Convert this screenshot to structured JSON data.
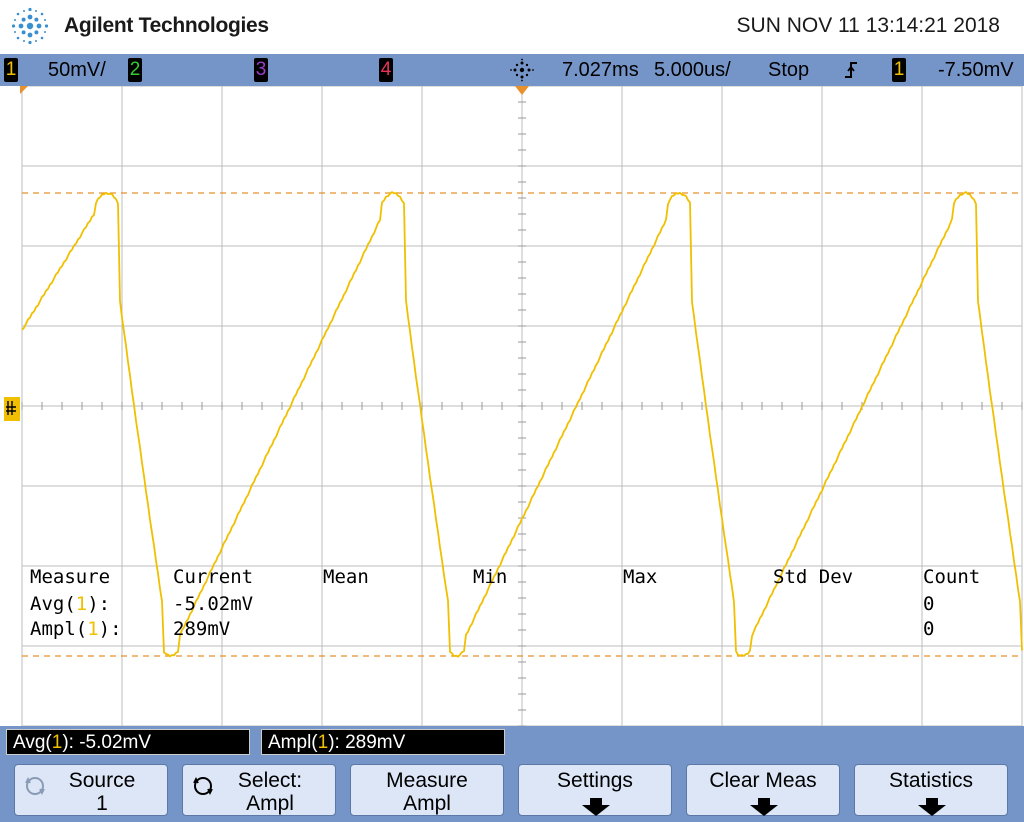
{
  "header": {
    "brand": "Agilent Technologies",
    "datetime": "SUN NOV 11 13:14:21 2018",
    "logo_icon": "agilent-spark-logo"
  },
  "status_bar": {
    "ch1": {
      "number": "1",
      "color": "#f0c000",
      "scale": "50mV/"
    },
    "ch2": {
      "number": "2",
      "color": "#33cc33"
    },
    "ch3": {
      "number": "3",
      "color": "#9a3cc8"
    },
    "ch4": {
      "number": "4",
      "color": "#e8325a"
    },
    "horizontal_position": "7.027ms",
    "time_scale": "5.000us/",
    "run_state": "Stop",
    "trigger_slope_icon": "rising-edge-icon",
    "trigger_source": "1",
    "trigger_level": "-7.50mV"
  },
  "measurements": {
    "headers": [
      "Measure",
      "Current",
      "Mean",
      "Min",
      "Max",
      "Std Dev",
      "Count"
    ],
    "rows": [
      {
        "name": "Avg",
        "source": "1",
        "current": "-5.02mV",
        "count": "0"
      },
      {
        "name": "Ampl",
        "source": "1",
        "current": "289mV",
        "count": "0"
      }
    ]
  },
  "measure_bar": {
    "avg": {
      "name": "Avg",
      "source": "1",
      "value": "-5.02mV"
    },
    "ampl": {
      "name": "Ampl",
      "source": "1",
      "value": "289mV"
    }
  },
  "softkeys": [
    {
      "line1": "Source",
      "line2": "1",
      "icon": "rotary-knob-icon"
    },
    {
      "line1": "Select:",
      "line2": "Ampl",
      "icon": "rotary-knob-icon"
    },
    {
      "line1": "Measure",
      "line2": "Ampl"
    },
    {
      "line1": "Settings",
      "icon": "submenu-arrow-icon"
    },
    {
      "line1": "Clear Meas",
      "icon": "submenu-arrow-icon"
    },
    {
      "line1": "Statistics",
      "icon": "submenu-arrow-icon"
    }
  ],
  "colors": {
    "trace": "#f0c000",
    "cursor": "#e8902a",
    "bar": "#7595c9",
    "grid": "#b8b8b8"
  }
}
